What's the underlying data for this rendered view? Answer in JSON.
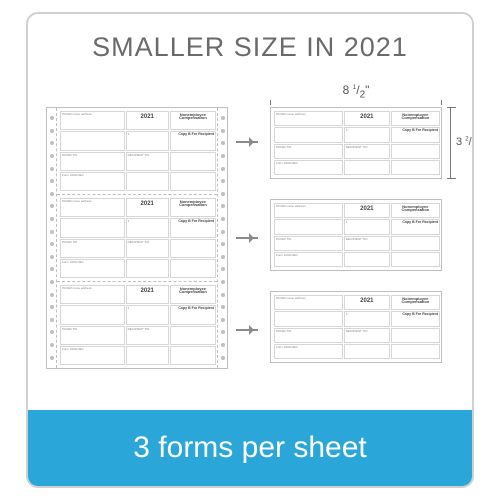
{
  "headline": "SMALLER SIZE IN 2021",
  "banner_text": "3 forms per sheet",
  "dimensions": {
    "width_label_html": "8 <sup>1</sup>/<sub>2</sub>\"",
    "height_label_html": "3 <sup>2</sup>/<sub>3</sub>\"",
    "width_label": "8 1/2\"",
    "height_label": "3 2/3\""
  },
  "form_mock": {
    "year": "2021",
    "title": "Nonemployee Compensation",
    "form_no": "Form 1099-NEC",
    "copy": "Copy B For Recipient"
  },
  "colors": {
    "frame_border": "#d0d0d0",
    "headline_text": "#6a6a6a",
    "banner_bg": "#2aa6d9",
    "banner_text": "#ffffff",
    "form_line": "#bfbfbf",
    "arrow": "#8a8a8a",
    "dim": "#777777"
  },
  "layout": {
    "left_forms_count": 3,
    "right_forms_count": 3,
    "tractor_holes_per_side": 20
  }
}
